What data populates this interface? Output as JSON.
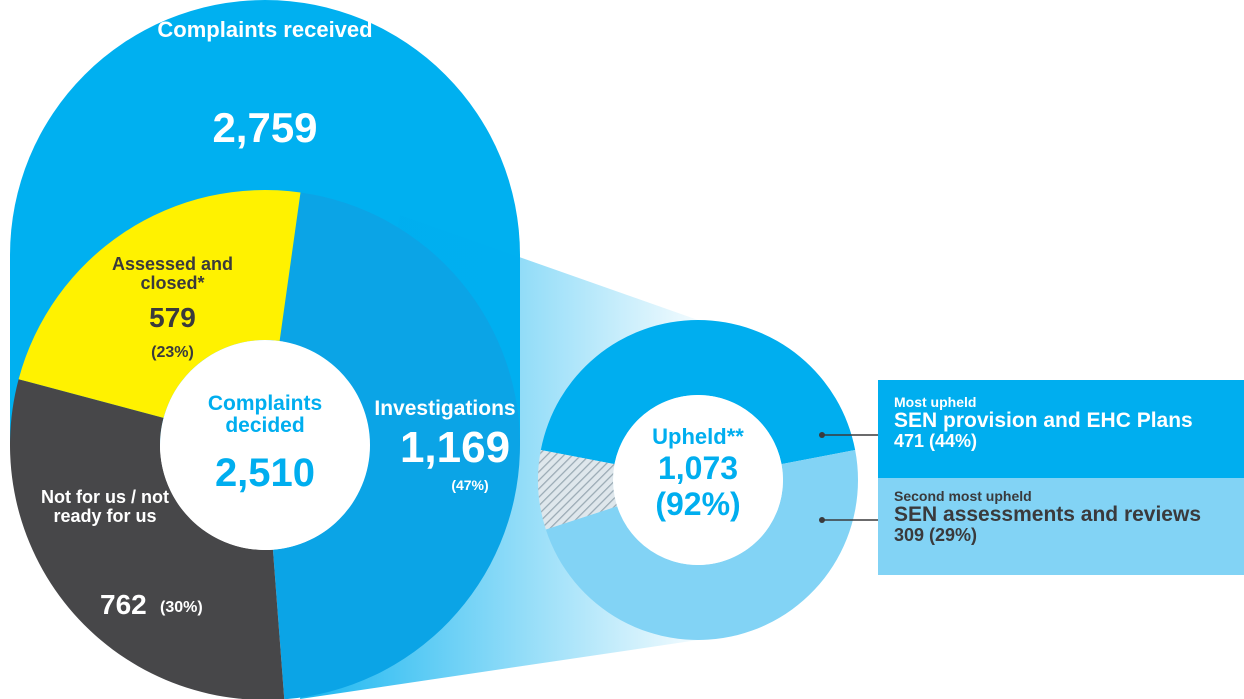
{
  "received": {
    "label": "Complaints received",
    "value": 2759,
    "value_label": "2,759"
  },
  "decided": {
    "label": "Complaints decided",
    "value": 2510,
    "value_label": "2,510",
    "segments": [
      {
        "label": "Investigations",
        "value": 1169,
        "value_label": "1,169",
        "percent": 47,
        "percent_label": "(47%)",
        "color": "#0ba4e6"
      },
      {
        "label": "Not for us / not ready for us",
        "value": 762,
        "percent": 30,
        "percent_label": "(30%)",
        "color": "#474749"
      },
      {
        "label": "Assessed and closed*",
        "value": 579,
        "percent": 23,
        "percent_label": "(23%)",
        "color": "#fff200"
      }
    ]
  },
  "upheld": {
    "label": "Upheld**",
    "value": 1073,
    "value_label": "1,073",
    "percent": 92,
    "percent_label": "(92%)",
    "segments": [
      {
        "heading": "Most upheld",
        "label": "SEN provision and EHC Plans",
        "value": 471,
        "percent": 44,
        "value_label": "471 (44%)",
        "color": "#00aeef"
      },
      {
        "heading": "Second most upheld",
        "label": "SEN assessments and reviews",
        "value": 309,
        "percent": 29,
        "value_label": "309 (29%)",
        "color": "#82d3f5"
      }
    ]
  }
}
